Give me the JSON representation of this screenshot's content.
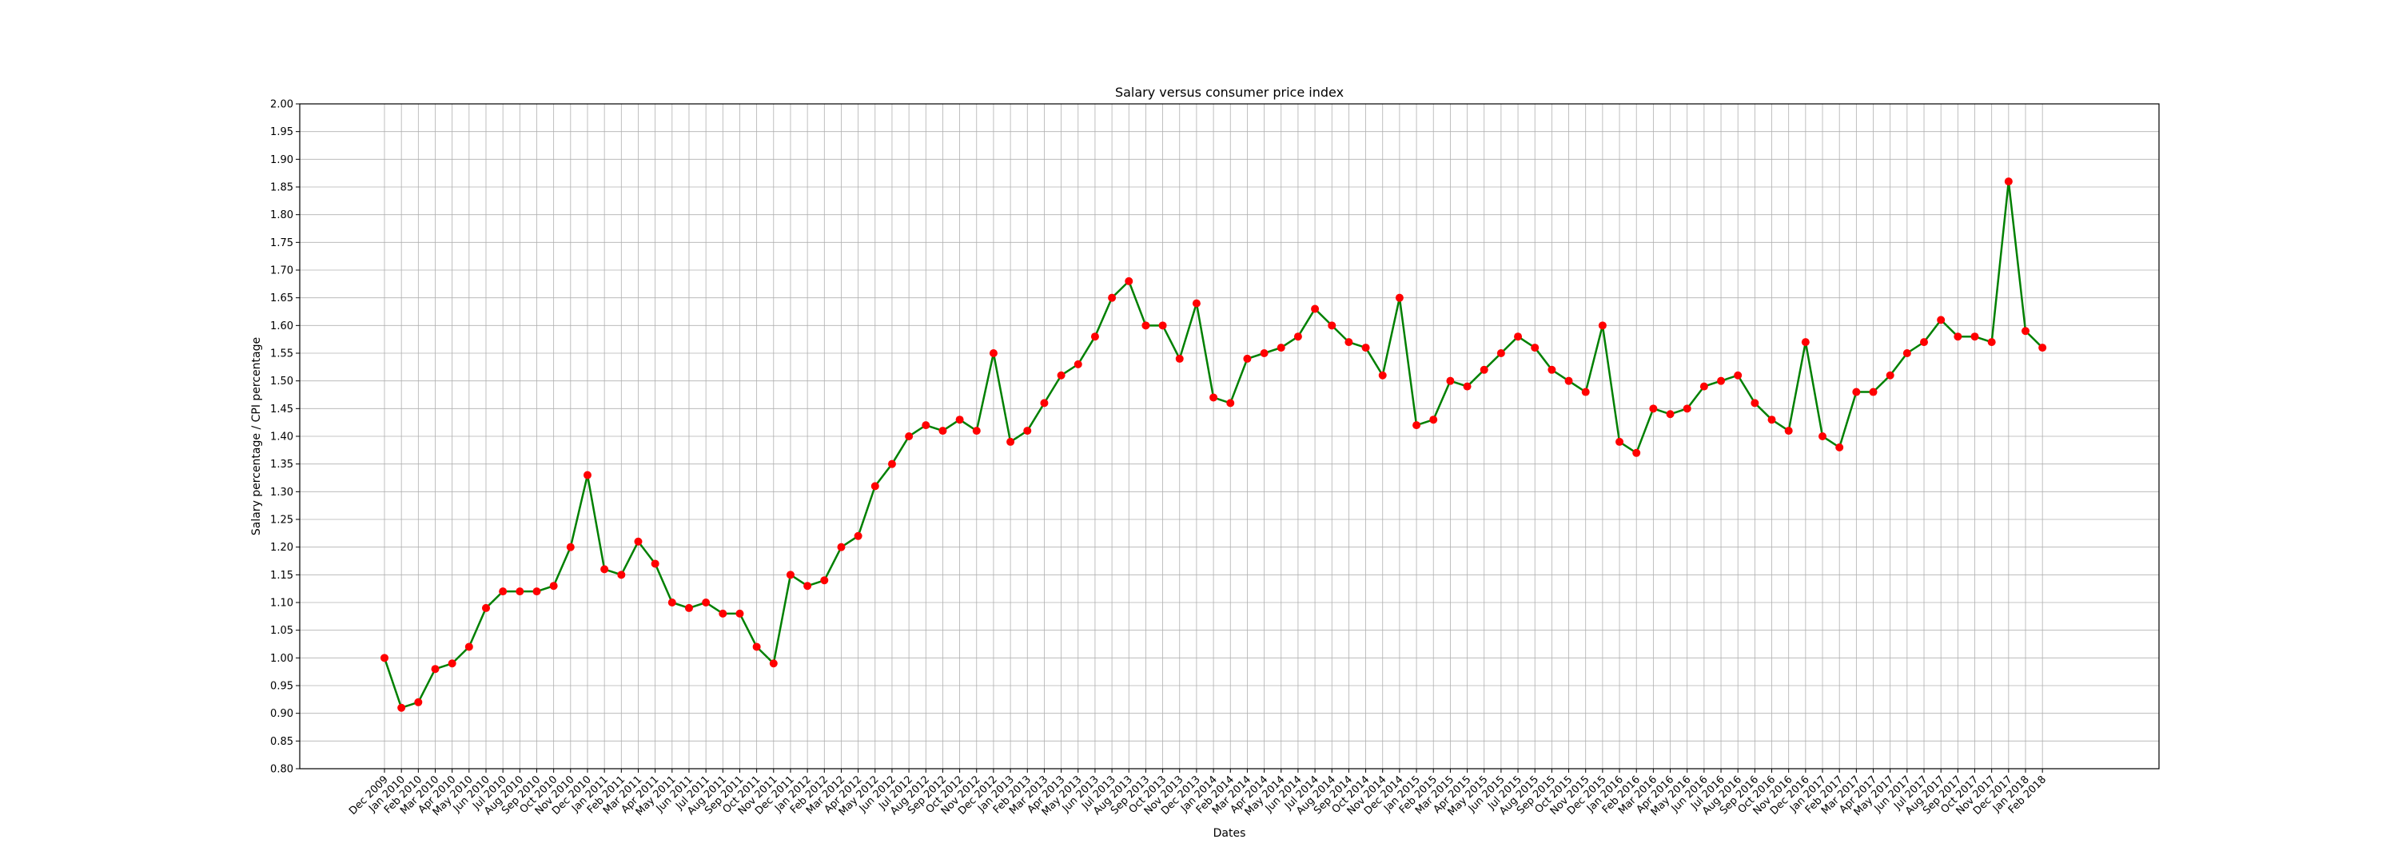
{
  "chart_data": {
    "type": "line",
    "title": "Salary versus consumer price index",
    "xlabel": "Dates",
    "ylabel": "Salary percentage / CPI percentage",
    "ylim": [
      0.8,
      2.0
    ],
    "y_ticks": [
      "0.80",
      "0.85",
      "0.90",
      "0.95",
      "1.00",
      "1.05",
      "1.10",
      "1.15",
      "1.20",
      "1.25",
      "1.30",
      "1.35",
      "1.40",
      "1.45",
      "1.50",
      "1.55",
      "1.60",
      "1.65",
      "1.70",
      "1.75",
      "1.80",
      "1.85",
      "1.90",
      "1.95",
      "2.00"
    ],
    "grid": true,
    "line_color": "#008000",
    "marker_color": "#ff0000",
    "categories": [
      "Dec 2009",
      "Jan 2010",
      "Feb 2010",
      "Mar 2010",
      "Apr 2010",
      "May 2010",
      "Jun 2010",
      "Jul 2010",
      "Aug 2010",
      "Sep 2010",
      "Oct 2010",
      "Nov 2010",
      "Dec 2010",
      "Jan 2011",
      "Feb 2011",
      "Mar 2011",
      "Apr 2011",
      "May 2011",
      "Jun 2011",
      "Jul 2011",
      "Aug 2011",
      "Sep 2011",
      "Oct 2011",
      "Nov 2011",
      "Dec 2011",
      "Jan 2012",
      "Feb 2012",
      "Mar 2012",
      "Apr 2012",
      "May 2012",
      "Jun 2012",
      "Jul 2012",
      "Aug 2012",
      "Sep 2012",
      "Oct 2012",
      "Nov 2012",
      "Dec 2012",
      "Jan 2013",
      "Feb 2013",
      "Mar 2013",
      "Apr 2013",
      "May 2013",
      "Jun 2013",
      "Jul 2013",
      "Aug 2013",
      "Sep 2013",
      "Oct 2013",
      "Nov 2013",
      "Dec 2013",
      "Jan 2014",
      "Feb 2014",
      "Mar 2014",
      "Apr 2014",
      "May 2014",
      "Jun 2014",
      "Jul 2014",
      "Aug 2014",
      "Sep 2014",
      "Oct 2014",
      "Nov 2014",
      "Dec 2014",
      "Jan 2015",
      "Feb 2015",
      "Mar 2015",
      "Apr 2015",
      "May 2015",
      "Jun 2015",
      "Jul 2015",
      "Aug 2015",
      "Sep 2015",
      "Oct 2015",
      "Nov 2015",
      "Dec 2015",
      "Jan 2016",
      "Feb 2016",
      "Mar 2016",
      "Apr 2016",
      "May 2016",
      "Jun 2016",
      "Jul 2016",
      "Aug 2016",
      "Sep 2016",
      "Oct 2016",
      "Nov 2016",
      "Dec 2016",
      "Jan 2017",
      "Feb 2017",
      "Mar 2017",
      "Apr 2017",
      "May 2017",
      "Jun 2017",
      "Jul 2017",
      "Aug 2017",
      "Sep 2017",
      "Oct 2017",
      "Nov 2017",
      "Dec 2017",
      "Jan 2018",
      "Feb 2018"
    ],
    "values": [
      1.0,
      0.91,
      0.92,
      0.98,
      0.99,
      1.02,
      1.09,
      1.12,
      1.12,
      1.12,
      1.13,
      1.2,
      1.33,
      1.16,
      1.15,
      1.21,
      1.17,
      1.1,
      1.09,
      1.1,
      1.08,
      1.08,
      1.02,
      0.99,
      1.15,
      1.13,
      1.14,
      1.2,
      1.22,
      1.31,
      1.35,
      1.4,
      1.42,
      1.41,
      1.43,
      1.41,
      1.55,
      1.39,
      1.41,
      1.46,
      1.51,
      1.53,
      1.58,
      1.65,
      1.68,
      1.6,
      1.6,
      1.54,
      1.64,
      1.47,
      1.46,
      1.54,
      1.55,
      1.56,
      1.58,
      1.63,
      1.6,
      1.57,
      1.56,
      1.51,
      1.65,
      1.42,
      1.43,
      1.5,
      1.49,
      1.52,
      1.55,
      1.58,
      1.56,
      1.52,
      1.5,
      1.48,
      1.6,
      1.39,
      1.37,
      1.45,
      1.44,
      1.45,
      1.49,
      1.5,
      1.51,
      1.46,
      1.43,
      1.41,
      1.57,
      1.4,
      1.38,
      1.48,
      1.48,
      1.51,
      1.55,
      1.57,
      1.61,
      1.58,
      1.58,
      1.57,
      1.86,
      1.59,
      1.56
    ]
  }
}
